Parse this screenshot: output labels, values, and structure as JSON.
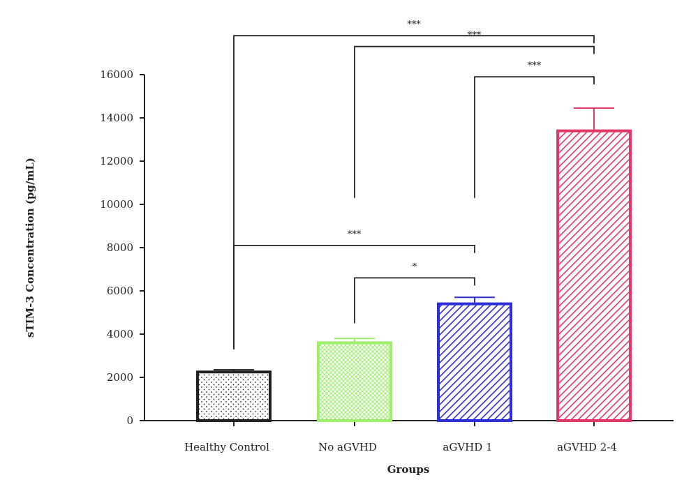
{
  "chart_data": {
    "type": "bar",
    "title": "",
    "xlabel": "Groups",
    "ylabel": "sTIM-3 Concentration (pg/mL)",
    "ylim": [
      0,
      16000
    ],
    "yticks": [
      0,
      2000,
      4000,
      6000,
      8000,
      10000,
      12000,
      14000,
      16000
    ],
    "categories": [
      "Healthy Control",
      "No aGVHD",
      "aGVHD 1",
      "aGVHD 2-4"
    ],
    "values": [
      2250,
      3600,
      5400,
      13400
    ],
    "errors": [
      100,
      200,
      300,
      1050
    ],
    "colors": [
      "#222222",
      "#9ef06a",
      "#2c2fd6",
      "#e0386a"
    ],
    "patterns": [
      "dots",
      "crosshatch",
      "diagonal",
      "diagonal"
    ],
    "significance": [
      {
        "from": 0,
        "to": 3,
        "level": 17800,
        "label": "***"
      },
      {
        "from": 1,
        "to": 3,
        "level": 17300,
        "label": "***"
      },
      {
        "from": 2,
        "to": 3,
        "level": 15900,
        "label": "***"
      },
      {
        "from": 0,
        "to": 2,
        "level": 8100,
        "label": "***"
      },
      {
        "from": 1,
        "to": 2,
        "level": 6600,
        "label": "*"
      }
    ],
    "grid": false,
    "legend": "none"
  }
}
